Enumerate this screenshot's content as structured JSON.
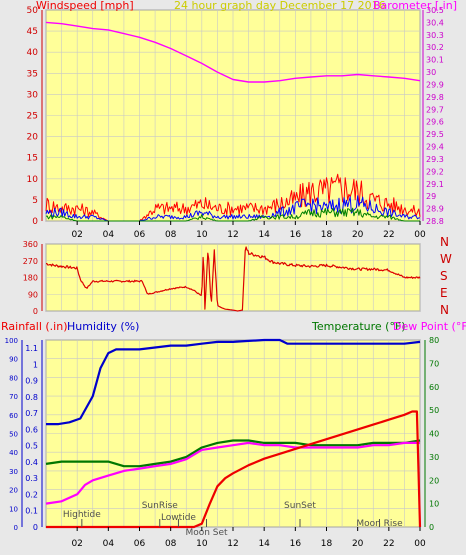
{
  "colors": {
    "plot_bg": "#ffff99",
    "outer_bg": "#e8e8e8",
    "grid": "#c8c8c8",
    "wind_avg": "#0000ff",
    "wind_gust": "#ff0000",
    "wind_low": "#008000",
    "barometer": "#ff00ff",
    "direction": "#dd0000",
    "rain": "#ee0000",
    "humidity": "#0000cc",
    "temperature": "#007700",
    "dewpoint": "#ff00ff",
    "title": "#cccc00",
    "compass": "#cc0000",
    "marker": "#505050"
  },
  "chart_data": [
    {
      "type": "line",
      "panel": "wind-baro",
      "title": "24 hour graph day   December 17 2016",
      "ylabel_left": "Windspeed [mph]",
      "ylabel_right": "Barometer [.in]",
      "x_ticks": [
        "02",
        "04",
        "06",
        "08",
        "10",
        "12",
        "14",
        "16",
        "18",
        "20",
        "22",
        "00"
      ],
      "ylim_left": [
        0,
        50
      ],
      "yticks_left": [
        "0",
        "5",
        "10",
        "15",
        "20",
        "25",
        "30",
        "35",
        "40",
        "45",
        "50"
      ],
      "ylim_right": [
        28.8,
        30.5
      ],
      "yticks_right": [
        "28.8",
        "28.9",
        "29",
        "29.1",
        "29.2",
        "29.3",
        "29.4",
        "29.5",
        "29.6",
        "29.7",
        "29.8",
        "29.9",
        "30",
        "30.1",
        "30.2",
        "30.3",
        "30.4",
        "30.5"
      ],
      "grid": true,
      "series": [
        {
          "name": "Barometer",
          "axis": "right",
          "x": [
            0,
            1,
            2,
            3,
            4,
            5,
            6,
            7,
            8,
            9,
            10,
            11,
            12,
            13,
            14,
            15,
            16,
            17,
            18,
            19,
            20,
            21,
            22,
            23,
            24
          ],
          "y": [
            30.4,
            30.39,
            30.37,
            30.35,
            30.34,
            30.31,
            30.28,
            30.24,
            30.19,
            30.13,
            30.07,
            30.0,
            29.94,
            29.92,
            29.92,
            29.93,
            29.95,
            29.96,
            29.97,
            29.97,
            29.98,
            29.97,
            29.96,
            29.95,
            29.93
          ]
        },
        {
          "name": "Wind gust",
          "axis": "left",
          "x": [
            0,
            1,
            2,
            3,
            4,
            5,
            6,
            7,
            8,
            9,
            10,
            11,
            12,
            13,
            14,
            15,
            16,
            17,
            18,
            19,
            20,
            21,
            22,
            23,
            24
          ],
          "y": [
            4,
            3,
            3,
            2,
            0,
            0,
            0,
            3,
            3,
            3,
            4,
            3,
            3,
            3,
            3,
            4,
            5,
            7,
            7,
            8,
            7,
            5,
            4,
            3,
            2
          ]
        },
        {
          "name": "Wind average",
          "axis": "left",
          "x": [
            0,
            1,
            2,
            3,
            4,
            5,
            6,
            7,
            8,
            9,
            10,
            11,
            12,
            13,
            14,
            15,
            16,
            17,
            18,
            19,
            20,
            21,
            22,
            23,
            24
          ],
          "y": [
            2,
            2,
            1,
            1,
            0,
            0,
            0,
            1,
            1,
            1,
            2,
            1,
            1,
            1,
            1,
            2,
            3,
            4,
            3,
            4,
            4,
            3,
            2,
            1,
            1
          ]
        },
        {
          "name": "Wind low",
          "axis": "left",
          "x": [
            0,
            1,
            2,
            3,
            4,
            5,
            6,
            7,
            8,
            9,
            10,
            11,
            12,
            13,
            14,
            15,
            16,
            17,
            18,
            19,
            20,
            21,
            22,
            23,
            24
          ],
          "y": [
            1,
            1,
            0,
            0,
            0,
            0,
            0,
            0,
            0,
            0,
            1,
            0,
            0,
            0,
            1,
            1,
            1,
            2,
            2,
            2,
            2,
            1,
            1,
            0,
            0
          ]
        }
      ]
    },
    {
      "type": "line",
      "panel": "direction",
      "ylim": [
        0,
        360
      ],
      "yticks": [
        "0",
        "90",
        "180",
        "270",
        "360"
      ],
      "compass_labels": [
        "N",
        "W",
        "S",
        "E",
        "N"
      ],
      "grid": true,
      "series": [
        {
          "name": "Wind direction",
          "x": [
            0,
            0.5,
            1.5,
            2.0,
            2.2,
            2.6,
            3.0,
            4.0,
            5.0,
            6.0,
            6.2,
            6.5,
            7.0,
            8.0,
            9.0,
            9.5,
            10.0,
            10.1,
            10.2,
            10.4,
            10.6,
            10.8,
            11.0,
            11.2,
            11.5,
            12.0,
            12.3,
            12.6,
            12.8,
            13.0,
            14.0,
            14.5,
            15.0,
            16.0,
            17.0,
            18.0,
            19.0,
            20.0,
            21.0,
            22.0,
            23.0,
            24.0
          ],
          "y": [
            255,
            245,
            235,
            230,
            170,
            120,
            160,
            160,
            160,
            160,
            160,
            90,
            100,
            120,
            130,
            110,
            80,
            340,
            10,
            340,
            20,
            330,
            30,
            20,
            10,
            5,
            0,
            5,
            350,
            310,
            290,
            265,
            255,
            245,
            240,
            245,
            235,
            225,
            225,
            220,
            180,
            180
          ]
        }
      ]
    },
    {
      "type": "line",
      "panel": "temp-hum-rain",
      "ylabel_left_rain": "Rainfall (.in)",
      "ylabel_left_hum": "Humidity (%)",
      "ylabel_right_temp": "Temperature (°F)",
      "ylabel_right_dew": "Dew Point (°F)",
      "ylim_rain": [
        0,
        1.15
      ],
      "yticks_rain": [
        "0",
        "0.1",
        "0.2",
        "0.3",
        "0.4",
        "0.5",
        "0.6",
        "0.7",
        "0.8",
        "0.9",
        "1",
        "1.1"
      ],
      "ylim_hum": [
        0,
        100
      ],
      "yticks_hum": [
        "0",
        "10",
        "20",
        "30",
        "40",
        "50",
        "60",
        "70",
        "80",
        "90",
        "100"
      ],
      "ylim_temp": [
        0,
        80
      ],
      "yticks_temp": [
        "0",
        "10",
        "20",
        "30",
        "40",
        "50",
        "60",
        "70",
        "80"
      ],
      "annotations": [
        {
          "label": "Hightide",
          "x": 2.3
        },
        {
          "label": "SunRise",
          "x": 7.3
        },
        {
          "label": "Lowtide",
          "x": 8.5
        },
        {
          "label": "Moon Set",
          "x": 10.3
        },
        {
          "label": "SunSet",
          "x": 16.3
        },
        {
          "label": "Moon Rise",
          "x": 21.4
        }
      ],
      "grid": true,
      "series": [
        {
          "name": "Humidity",
          "axis": "hum",
          "x": [
            0,
            0.8,
            1.5,
            2.2,
            3.0,
            3.5,
            4.0,
            4.5,
            5.0,
            6.0,
            7.0,
            8.0,
            9.0,
            10.0,
            11.0,
            12.0,
            13.0,
            14.0,
            15.0,
            15.5,
            16.0,
            17.0,
            18.0,
            19.0,
            20.0,
            21.0,
            22.0,
            23.0,
            24.0
          ],
          "y": [
            55,
            55,
            56,
            58,
            70,
            85,
            93,
            95,
            95,
            95,
            96,
            97,
            97,
            98,
            99,
            99,
            99.5,
            100,
            100,
            98,
            98,
            98,
            98,
            98,
            98,
            98,
            98,
            98,
            99
          ]
        },
        {
          "name": "Temperature",
          "axis": "temp",
          "x": [
            0,
            1,
            2,
            3,
            4,
            5,
            6,
            7,
            8,
            9,
            10,
            11,
            12,
            13,
            14,
            15,
            16,
            17,
            18,
            19,
            20,
            21,
            22,
            23,
            24
          ],
          "y": [
            27,
            28,
            28,
            28,
            28,
            26,
            26,
            27,
            28,
            30,
            34,
            36,
            37,
            37,
            36,
            36,
            36,
            35,
            35,
            35,
            35,
            36,
            36,
            36,
            37
          ]
        },
        {
          "name": "Dew Point",
          "axis": "temp",
          "x": [
            0,
            1,
            2,
            2.5,
            3,
            4,
            5,
            6,
            7,
            8,
            9,
            10,
            11,
            12,
            13,
            14,
            15,
            16,
            17,
            18,
            19,
            20,
            21,
            22,
            23,
            24
          ],
          "y": [
            10,
            11,
            14,
            18,
            20,
            22,
            24,
            25,
            26,
            27,
            29,
            33,
            34,
            35,
            36,
            35,
            35,
            34,
            34,
            34,
            34,
            34,
            35,
            35,
            36,
            36
          ]
        },
        {
          "name": "Rainfall",
          "axis": "rain",
          "x": [
            0,
            9.5,
            10.0,
            10.5,
            11.0,
            11.5,
            12.0,
            13.0,
            14.0,
            15.0,
            16.0,
            17.0,
            18.0,
            19.0,
            20.0,
            21.0,
            22.0,
            23.0,
            23.5,
            23.8,
            24.0
          ],
          "y": [
            0,
            0,
            0.02,
            0.14,
            0.25,
            0.3,
            0.33,
            0.38,
            0.42,
            0.45,
            0.48,
            0.51,
            0.54,
            0.57,
            0.6,
            0.63,
            0.66,
            0.69,
            0.71,
            0.71,
            0.0
          ]
        }
      ]
    }
  ]
}
